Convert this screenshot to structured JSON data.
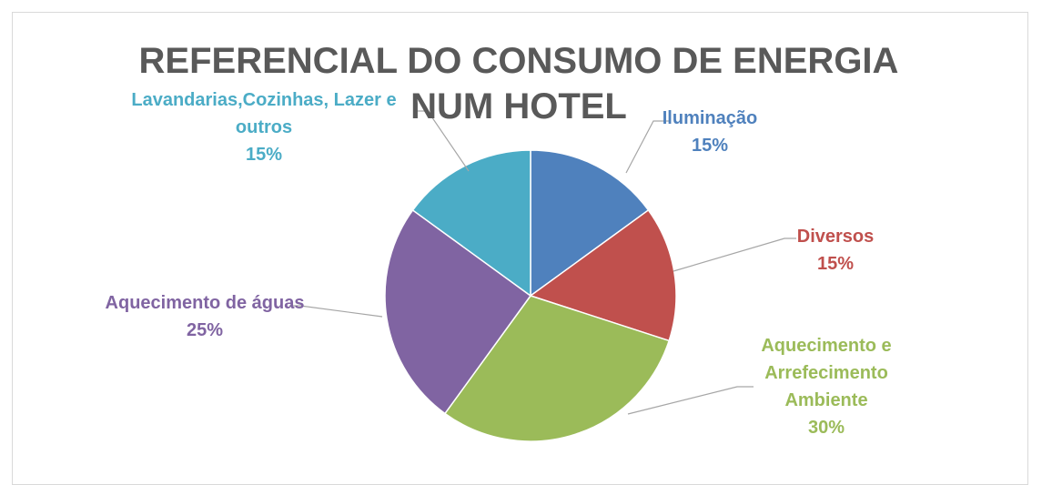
{
  "chart_data": {
    "type": "pie",
    "title": "REFERENCIAL DO CONSUMO DE ENERGIA NUM HOTEL",
    "categories": [
      "Iluminação",
      "Diversos",
      "Aquecimento e Arrefecimento Ambiente",
      "Aquecimento de águas",
      "Lavandarias,Cozinhas, Lazer e outros"
    ],
    "values": [
      15,
      15,
      30,
      25,
      15
    ],
    "value_labels": [
      "15%",
      "15%",
      "30%",
      "25%",
      "15%"
    ],
    "colors": [
      "#4f81bd",
      "#c0504d",
      "#9bbb59",
      "#8064a2",
      "#4bacc6"
    ]
  }
}
